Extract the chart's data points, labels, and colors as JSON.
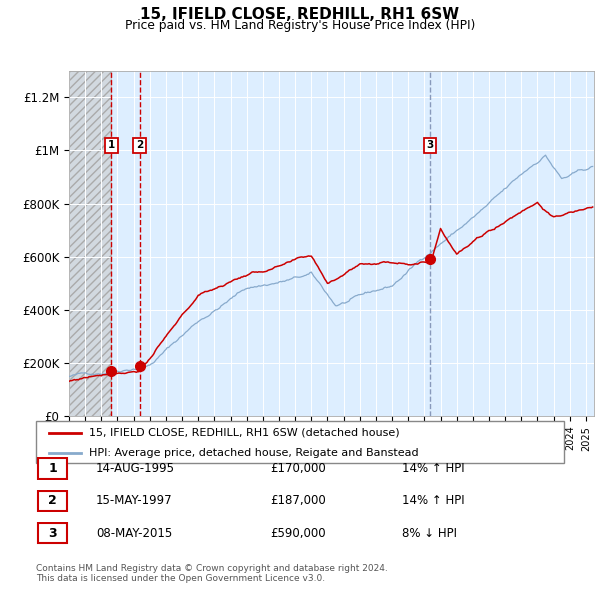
{
  "title": "15, IFIELD CLOSE, REDHILL, RH1 6SW",
  "subtitle": "Price paid vs. HM Land Registry's House Price Index (HPI)",
  "legend_line1": "15, IFIELD CLOSE, REDHILL, RH1 6SW (detached house)",
  "legend_line2": "HPI: Average price, detached house, Reigate and Banstead",
  "footer": "Contains HM Land Registry data © Crown copyright and database right 2024.\nThis data is licensed under the Open Government Licence v3.0.",
  "transactions": [
    {
      "num": 1,
      "date": "14-AUG-1995",
      "price": 170000,
      "year": 1995.62,
      "hpi_pct": "14% ↑ HPI"
    },
    {
      "num": 2,
      "date": "15-MAY-1997",
      "price": 187000,
      "year": 1997.37,
      "hpi_pct": "14% ↑ HPI"
    },
    {
      "num": 3,
      "date": "08-MAY-2015",
      "price": 590000,
      "year": 2015.35,
      "hpi_pct": "8% ↓ HPI"
    }
  ],
  "ylim": [
    0,
    1300000
  ],
  "xlim_start": 1993.0,
  "xlim_end": 2025.5,
  "red_line_color": "#cc0000",
  "blue_line_color": "#88aacc",
  "dot_color": "#cc0000",
  "bg_color": "#ddeeff",
  "ytick_labels": [
    "£0",
    "£200K",
    "£400K",
    "£600K",
    "£800K",
    "£1M",
    "£1.2M"
  ],
  "ytick_values": [
    0,
    200000,
    400000,
    600000,
    800000,
    1000000,
    1200000
  ]
}
